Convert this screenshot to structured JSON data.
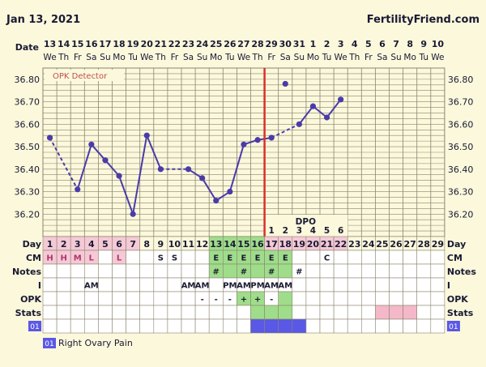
{
  "header": {
    "date": "Jan 13, 2021",
    "site": "FertilityFriend.com"
  },
  "chart_data": {
    "type": "line",
    "title": "",
    "ylim": [
      36.1,
      36.85
    ],
    "y_ticks": [
      "36.20",
      "36.30",
      "36.40",
      "36.50",
      "36.60",
      "36.70",
      "36.80"
    ],
    "date_row_label": "Date",
    "dates": [
      "13",
      "14",
      "15",
      "16",
      "17",
      "18",
      "19",
      "20",
      "21",
      "22",
      "23",
      "24",
      "25",
      "26",
      "27",
      "28",
      "29",
      "30",
      "31",
      "1",
      "2",
      "3",
      "4",
      "5",
      "6",
      "7",
      "8",
      "9",
      "10"
    ],
    "weekdays": [
      "We",
      "Th",
      "Fr",
      "Sa",
      "Su",
      "Mo",
      "Tu",
      "We",
      "Th",
      "Fr",
      "Sa",
      "Su",
      "Mo",
      "Tu",
      "We",
      "Th",
      "Fr",
      "Sa",
      "Su",
      "Mo",
      "Tu",
      "We",
      "Th",
      "Fr",
      "Sa",
      "Su",
      "Mo",
      "Tu",
      "We"
    ],
    "day_row_label": "Day",
    "days": [
      "1",
      "2",
      "3",
      "4",
      "5",
      "6",
      "7",
      "8",
      "9",
      "10",
      "11",
      "12",
      "13",
      "14",
      "15",
      "16",
      "17",
      "18",
      "19",
      "20",
      "21",
      "22",
      "23",
      "24",
      "25",
      "26",
      "27",
      "28",
      "29"
    ],
    "temperatures": [
      36.54,
      null,
      36.31,
      36.51,
      36.44,
      36.37,
      36.2,
      36.55,
      36.4,
      null,
      36.4,
      36.36,
      36.26,
      36.3,
      36.51,
      36.53,
      36.54,
      null,
      36.6,
      36.68,
      36.63,
      36.71,
      null,
      null,
      null,
      null,
      null,
      null,
      null
    ],
    "discarded_temps": [
      null,
      null,
      null,
      null,
      null,
      null,
      null,
      null,
      null,
      null,
      null,
      null,
      null,
      null,
      null,
      null,
      null,
      36.78,
      null,
      null,
      null,
      null,
      null,
      null,
      null,
      null,
      null,
      null,
      null
    ],
    "dashed_segments": [
      [
        0,
        2
      ],
      [
        8,
        10
      ],
      [
        16,
        18
      ]
    ],
    "ovulation_day_index": 15,
    "coverline_start_index": 15,
    "opk_detector_label": "OPK Detector",
    "dpo_label": "DPO",
    "dpo": [
      null,
      null,
      null,
      null,
      null,
      null,
      null,
      null,
      null,
      null,
      null,
      null,
      null,
      null,
      null,
      null,
      "1",
      "2",
      "3",
      "4",
      "5",
      "6",
      null,
      null,
      null,
      null,
      null,
      null,
      null
    ],
    "rows": {
      "cm": {
        "label": "CM",
        "values": [
          "H",
          "H",
          "M",
          "L",
          "",
          "L",
          "",
          "",
          "S",
          "S",
          "",
          "",
          "E",
          "E",
          "E",
          "E",
          "E",
          "E",
          "",
          "",
          "C",
          "",
          "",
          "",
          "",
          "",
          "",
          "",
          ""
        ]
      },
      "notes": {
        "label": "Notes",
        "values": [
          "",
          "",
          "",
          "",
          "",
          "",
          "",
          "",
          "",
          "",
          "",
          "",
          "#",
          "",
          "#",
          "",
          "#",
          "",
          "#",
          "",
          "",
          "",
          "",
          "",
          "",
          "",
          "",
          "",
          ""
        ]
      },
      "i": {
        "label": "I",
        "values": [
          "",
          "",
          "",
          "AM",
          "",
          "",
          "",
          "",
          "",
          "",
          "AM",
          "AM",
          "",
          "PM",
          "AM",
          "PM",
          "AM",
          "AM",
          "",
          "",
          "",
          "",
          "",
          "",
          "",
          "",
          "",
          "",
          ""
        ]
      },
      "opk": {
        "label": "OPK",
        "values": [
          "",
          "",
          "",
          "",
          "",
          "",
          "",
          "",
          "",
          "",
          "",
          "-",
          "-",
          "-",
          "+",
          "+",
          "-",
          "",
          "",
          "",
          "",
          "",
          "",
          "",
          "",
          "",
          "",
          "",
          ""
        ]
      },
      "stats": {
        "label": "Stats"
      },
      "symptoms": {
        "label": "01"
      }
    },
    "legend": {
      "badge": "01",
      "text": "Right Ovary Pain"
    }
  },
  "colors": {
    "background": "#fbf8dc",
    "grid": "#8b8570",
    "line": "#4b3ba8",
    "ovulation": "#d9312b",
    "fertile": "#9fdd8a",
    "menstrual": "#f5c9d6",
    "cm_text_menstrual": "#b0366b",
    "symptom": "#5a58e6",
    "stats_pink": "#f4b8c9",
    "axis_label": "#1a1a33"
  }
}
